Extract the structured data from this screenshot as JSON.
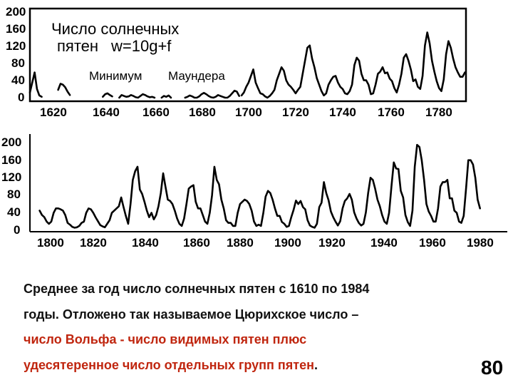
{
  "chart_data": [
    {
      "type": "line",
      "annotations": [
        "Число солнечных",
        "пятен",
        "w=10g+f",
        "Минимум",
        "Маундера"
      ],
      "y_ticks": [
        "200",
        "160",
        "120",
        "80",
        "40",
        "0"
      ],
      "x_ticks": [
        "1620",
        "1640",
        "1660",
        "1680",
        "1700",
        "1720",
        "1740",
        "1760",
        "1780"
      ],
      "ylim": [
        0,
        200
      ],
      "xlim": [
        1610,
        1795
      ],
      "grid": false,
      "series": [
        {
          "x": [
            1610,
            1611,
            1612,
            1613,
            1614,
            1615
          ],
          "values": [
            12,
            35,
            58,
            20,
            5,
            2
          ]
        },
        {
          "x": [
            1622,
            1623,
            1624,
            1625,
            1626,
            1627
          ],
          "values": [
            18,
            32,
            30,
            24,
            14,
            6
          ]
        },
        {
          "x": [
            1641,
            1642,
            1643,
            1644,
            1645
          ],
          "values": [
            2,
            8,
            10,
            6,
            3
          ]
        },
        {
          "x": [
            1648,
            1649,
            1650,
            1651,
            1652,
            1653,
            1654,
            1655,
            1656,
            1657,
            1658,
            1659,
            1660,
            1661,
            1662,
            1663
          ],
          "values": [
            0,
            6,
            4,
            2,
            3,
            6,
            4,
            1,
            0,
            4,
            8,
            6,
            3,
            1,
            2,
            0
          ]
        },
        {
          "x": [
            1666,
            1667,
            1668,
            1669,
            1670
          ],
          "values": [
            0,
            4,
            2,
            5,
            0
          ]
        },
        {
          "x": [
            1676,
            1677,
            1678,
            1679,
            1680,
            1681,
            1682,
            1683,
            1684,
            1685,
            1686,
            1687,
            1688,
            1689,
            1690,
            1691,
            1692,
            1693,
            1694,
            1695,
            1696,
            1697,
            1698,
            1699
          ],
          "values": [
            0,
            2,
            5,
            3,
            0,
            0,
            3,
            8,
            11,
            8,
            4,
            1,
            0,
            2,
            6,
            4,
            2,
            0,
            0,
            4,
            10,
            16,
            14,
            4
          ]
        },
        {
          "x": [
            1700,
            1701,
            1702,
            1703,
            1704,
            1705,
            1706,
            1707,
            1708,
            1709,
            1710,
            1711,
            1712,
            1713,
            1714,
            1715,
            1716,
            1717,
            1718,
            1719,
            1720,
            1721,
            1722,
            1723,
            1724,
            1725,
            1726,
            1727,
            1728,
            1729,
            1730,
            1731,
            1732,
            1733,
            1734,
            1735,
            1736,
            1737,
            1738,
            1739,
            1740,
            1741,
            1742,
            1743,
            1744,
            1745,
            1746,
            1747,
            1748,
            1749,
            1750,
            1751,
            1752,
            1753,
            1754,
            1755,
            1756,
            1757,
            1758,
            1759,
            1760,
            1761,
            1762,
            1763,
            1764,
            1765,
            1766,
            1767,
            1768,
            1769,
            1770,
            1771,
            1772,
            1773,
            1774,
            1775,
            1776,
            1777,
            1778,
            1779,
            1780,
            1781,
            1782,
            1783,
            1784,
            1785,
            1786,
            1787,
            1788,
            1789,
            1790,
            1791,
            1792,
            1793,
            1794,
            1795
          ],
          "values": [
            5,
            12,
            25,
            35,
            50,
            65,
            35,
            22,
            10,
            8,
            3,
            0,
            4,
            10,
            18,
            40,
            55,
            70,
            62,
            40,
            30,
            25,
            18,
            10,
            18,
            25,
            55,
            85,
            115,
            120,
            90,
            70,
            45,
            30,
            15,
            5,
            10,
            30,
            40,
            48,
            50,
            35,
            25,
            20,
            10,
            8,
            15,
            30,
            75,
            92,
            85,
            55,
            40,
            40,
            30,
            8,
            10,
            30,
            55,
            60,
            70,
            56,
            58,
            44,
            38,
            22,
            12,
            30,
            55,
            92,
            100,
            85,
            65,
            38,
            42,
            25,
            20,
            50,
            120,
            150,
            125,
            85,
            60,
            38,
            22,
            15,
            42,
            100,
            130,
            115,
            90,
            70,
            58,
            48,
            48,
            58
          ]
        }
      ]
    },
    {
      "type": "line",
      "y_ticks": [
        "200",
        "160",
        "120",
        "80",
        "40",
        "0"
      ],
      "x_ticks": [
        "1800",
        "1820",
        "1840",
        "1860",
        "1880",
        "1900",
        "1920",
        "1940",
        "1960",
        "1980"
      ],
      "ylim": [
        0,
        200
      ],
      "xlim": [
        1795,
        1985
      ],
      "grid": false,
      "series": [
        {
          "x": [
            1795,
            1796,
            1797,
            1798,
            1799,
            1800,
            1801,
            1802,
            1803,
            1804,
            1805,
            1806,
            1807,
            1808,
            1809,
            1810,
            1811,
            1812,
            1813,
            1814,
            1815,
            1816,
            1817,
            1818,
            1819,
            1820,
            1821,
            1822,
            1823,
            1824,
            1825,
            1826,
            1827,
            1828,
            1829,
            1830,
            1831,
            1832,
            1833,
            1834,
            1835,
            1836,
            1837,
            1838,
            1839,
            1840,
            1841,
            1842,
            1843,
            1844,
            1845,
            1846,
            1847,
            1848,
            1849,
            1850,
            1851,
            1852,
            1853,
            1854,
            1855,
            1856,
            1857,
            1858,
            1859,
            1860,
            1861,
            1862,
            1863,
            1864,
            1865,
            1866,
            1867,
            1868,
            1869,
            1870,
            1871,
            1872,
            1873,
            1874,
            1875,
            1876,
            1877,
            1878,
            1879,
            1880,
            1881,
            1882,
            1883,
            1884,
            1885,
            1886,
            1887,
            1888,
            1889,
            1890,
            1891,
            1892,
            1893,
            1894,
            1895,
            1896,
            1897,
            1898,
            1899,
            1900,
            1901,
            1902,
            1903,
            1904,
            1905,
            1906,
            1907,
            1908,
            1909,
            1910,
            1911,
            1912,
            1913,
            1914,
            1915,
            1916,
            1917,
            1918,
            1919,
            1920,
            1921,
            1922,
            1923,
            1924,
            1925,
            1926,
            1927,
            1928,
            1929,
            1930,
            1931,
            1932,
            1933,
            1934,
            1935,
            1936,
            1937,
            1938,
            1939,
            1940,
            1941,
            1942,
            1943,
            1944,
            1945,
            1946,
            1947,
            1948,
            1949,
            1950,
            1951,
            1952,
            1953,
            1954,
            1955,
            1956,
            1957,
            1958,
            1959,
            1960,
            1961,
            1962,
            1963,
            1964,
            1965,
            1966,
            1967,
            1968,
            1969,
            1970,
            1971,
            1972,
            1973,
            1974,
            1975,
            1976,
            1977,
            1978,
            1979,
            1980,
            1981,
            1982,
            1983,
            1984
          ],
          "values": [
            40,
            30,
            25,
            15,
            10,
            15,
            35,
            45,
            45,
            43,
            40,
            30,
            12,
            8,
            3,
            1,
            2,
            5,
            12,
            15,
            35,
            45,
            43,
            35,
            25,
            16,
            7,
            4,
            2,
            10,
            18,
            35,
            40,
            45,
            50,
            70,
            48,
            28,
            10,
            55,
            110,
            130,
            140,
            88,
            78,
            60,
            40,
            25,
            35,
            20,
            30,
            50,
            80,
            125,
            95,
            65,
            62,
            55,
            40,
            22,
            10,
            5,
            22,
            55,
            90,
            95,
            98,
            60,
            45,
            45,
            30,
            15,
            10,
            35,
            75,
            140,
            110,
            100,
            65,
            45,
            18,
            12,
            12,
            5,
            5,
            35,
            55,
            60,
            65,
            62,
            55,
            40,
            15,
            5,
            8,
            5,
            35,
            72,
            85,
            80,
            65,
            45,
            28,
            28,
            14,
            10,
            3,
            5,
            25,
            42,
            63,
            55,
            62,
            48,
            43,
            18,
            6,
            3,
            1,
            10,
            48,
            58,
            105,
            80,
            64,
            38,
            25,
            15,
            6,
            16,
            45,
            62,
            68,
            78,
            65,
            36,
            22,
            12,
            6,
            10,
            36,
            80,
            115,
            110,
            90,
            65,
            50,
            30,
            15,
            10,
            35,
            95,
            150,
            136,
            135,
            85,
            70,
            30,
            14,
            5,
            40,
            140,
            190,
            185,
            155,
            110,
            55,
            38,
            28,
            15,
            15,
            45,
            95,
            105,
            105,
            110,
            68,
            68,
            40,
            35,
            15,
            12,
            28,
            90,
            155,
            155,
            145,
            115,
            65,
            45
          ]
        }
      ]
    }
  ],
  "caption": {
    "line1": "Среднее за год число солнечных пятен с 1610 по 1984",
    "line2": "годы. Отложено так называемое Цюрихское число –",
    "line3_red": "число Вольфа",
    "line3_sep": " - ",
    "line3_tail": "число видимых пятен плюс",
    "line4_red": "удесятеренное число отдельных групп пятен",
    "line4_end": "."
  },
  "page_number": "80",
  "colors": {
    "line": "#000000",
    "frame": "#000000",
    "caption_text": "#111111",
    "highlight": "#c0260f"
  }
}
